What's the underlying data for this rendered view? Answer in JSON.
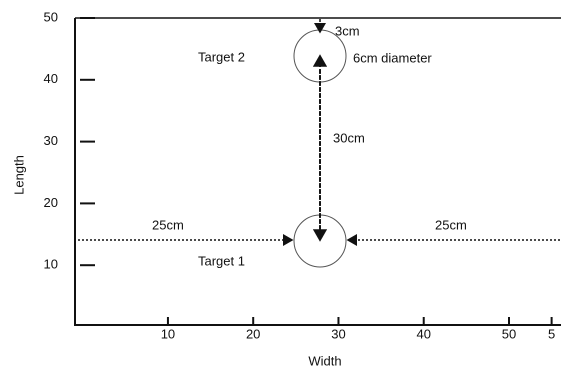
{
  "axes": {
    "x_label": "Width",
    "y_label": "Length",
    "xlim": [
      -0.9,
      56.1
    ],
    "ylim": [
      0,
      50
    ],
    "xticks": [
      10,
      20,
      30,
      40,
      50,
      {
        "value": 55,
        "label": "5"
      }
    ],
    "yticks": [
      10,
      20,
      30,
      40,
      50
    ]
  },
  "annotations": {
    "target_1": "Target 1",
    "target_2": "Target 2",
    "gap_top": "3cm",
    "diameter": "6cm diameter",
    "distance": "30cm",
    "left_margin": "25cm",
    "right_margin": "25cm"
  }
}
